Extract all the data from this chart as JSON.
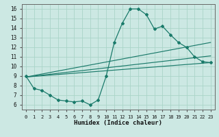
{
  "xlabel": "Humidex (Indice chaleur)",
  "bg_color": "#cce8e3",
  "grid_color": "#aad4c8",
  "line_color": "#1a7a6a",
  "xlim": [
    -0.5,
    23.5
  ],
  "ylim": [
    5.5,
    16.5
  ],
  "xticks": [
    0,
    1,
    2,
    3,
    4,
    5,
    6,
    7,
    8,
    9,
    10,
    11,
    12,
    13,
    14,
    15,
    16,
    17,
    18,
    19,
    20,
    21,
    22,
    23
  ],
  "yticks": [
    6,
    7,
    8,
    9,
    10,
    11,
    12,
    13,
    14,
    15,
    16
  ],
  "main_series_x": [
    0,
    1,
    2,
    3,
    4,
    5,
    6,
    7,
    8,
    9,
    10,
    11,
    12,
    13,
    14,
    15,
    16,
    17,
    18,
    19,
    20,
    21,
    22,
    23
  ],
  "main_series_y": [
    9.0,
    7.7,
    7.5,
    7.0,
    6.5,
    6.4,
    6.3,
    6.4,
    6.0,
    6.5,
    9.0,
    12.5,
    14.5,
    16.0,
    16.0,
    15.4,
    13.9,
    14.2,
    13.3,
    12.5,
    12.0,
    11.0,
    10.5,
    10.4
  ],
  "straight_lines": [
    {
      "x": [
        0,
        23
      ],
      "y": [
        8.9,
        10.4
      ]
    },
    {
      "x": [
        0,
        23
      ],
      "y": [
        8.9,
        11.1
      ]
    },
    {
      "x": [
        0,
        23
      ],
      "y": [
        8.9,
        12.5
      ]
    }
  ],
  "xlabel_fontsize": 6.5,
  "tick_fontsize_x": 5.0,
  "tick_fontsize_y": 5.5
}
